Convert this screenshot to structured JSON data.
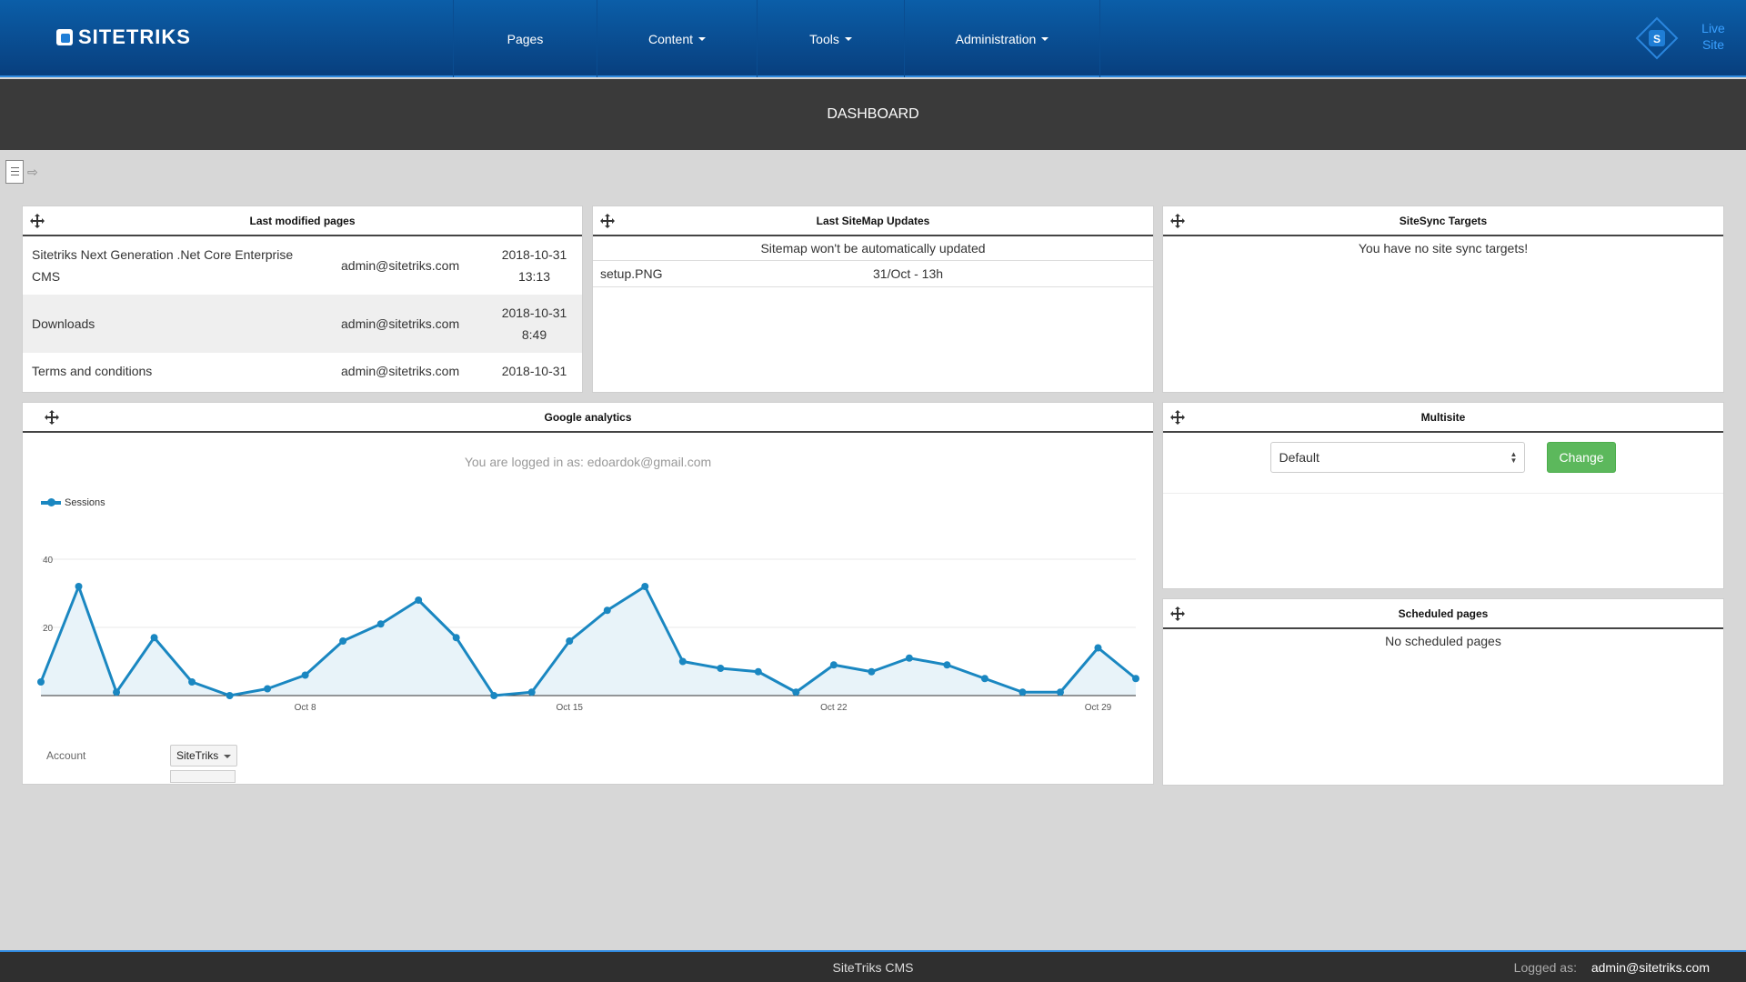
{
  "brand": {
    "name": "SITETRIKS"
  },
  "nav": {
    "items": [
      {
        "label": "Pages",
        "dropdown": false
      },
      {
        "label": "Content",
        "dropdown": true
      },
      {
        "label": "Tools",
        "dropdown": true
      },
      {
        "label": "Administration",
        "dropdown": true
      }
    ],
    "live_site_line1": "Live",
    "live_site_line2": "Site"
  },
  "page_title": "DASHBOARD",
  "panels": {
    "last_modified": {
      "title": "Last modified pages",
      "rows": [
        {
          "title": "Sitetriks Next Generation .Net Core Enterprise CMS",
          "user": "admin@sitetriks.com",
          "date": "2018-10-31",
          "time": "13:13"
        },
        {
          "title": "Downloads",
          "user": "admin@sitetriks.com",
          "date": "2018-10-31",
          "time": "8:49"
        },
        {
          "title": "Terms and conditions",
          "user": "admin@sitetriks.com",
          "date": "2018-10-31",
          "time": ""
        }
      ]
    },
    "sitemap": {
      "title": "Last SiteMap Updates",
      "notice": "Sitemap won't be automatically updated",
      "rows": [
        {
          "file": "setup.PNG",
          "date": "31/Oct - 13h"
        }
      ]
    },
    "sitesync": {
      "title": "SiteSync Targets",
      "message": "You have no site sync targets!"
    },
    "analytics": {
      "title": "Google analytics",
      "logged_in": "You are logged in as: edoardok@gmail.com",
      "account_label": "Account",
      "account_value": "SiteTriks"
    },
    "multisite": {
      "title": "Multisite",
      "selected": "Default",
      "button": "Change"
    },
    "scheduled": {
      "title": "Scheduled pages",
      "message": "No scheduled pages"
    }
  },
  "chart_data": {
    "type": "area",
    "series": [
      {
        "name": "Sessions",
        "values": [
          4,
          32,
          1,
          17,
          4,
          0,
          2,
          6,
          16,
          21,
          28,
          17,
          0,
          1,
          16,
          25,
          32,
          10,
          8,
          7,
          1,
          9,
          7,
          11,
          9,
          5,
          1,
          1,
          14,
          5
        ]
      }
    ],
    "x_tick_labels": [
      "Oct 8",
      "Oct 15",
      "Oct 22",
      "Oct 29"
    ],
    "y_tick_labels": [
      "20",
      "40"
    ],
    "ylim": [
      0,
      40
    ],
    "legend": "top-left",
    "color": "#1a87c1"
  },
  "footer": {
    "center": "SiteTriks CMS",
    "label": "Logged as:",
    "user": "admin@sitetriks.com"
  }
}
